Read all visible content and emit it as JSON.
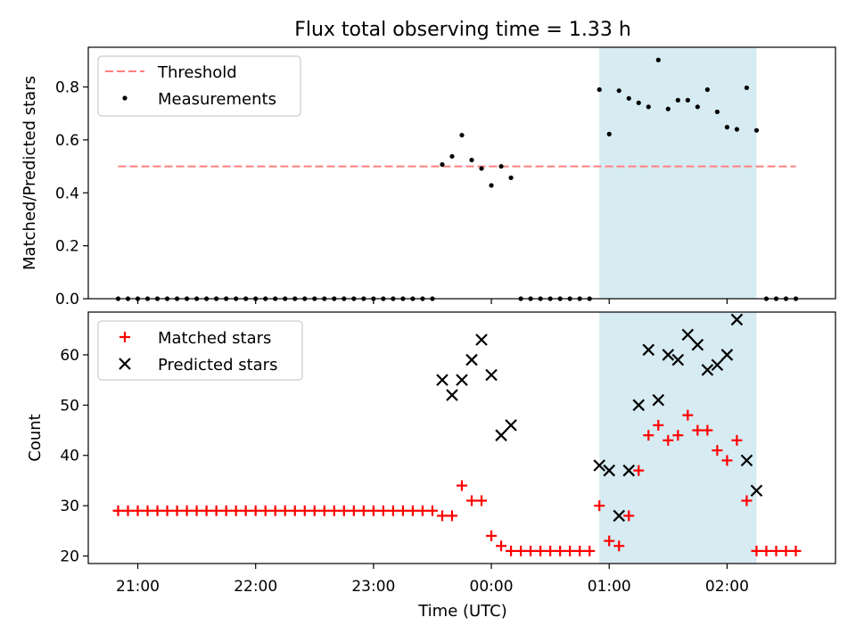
{
  "title": "Flux total observing time = 1.33 h",
  "colors": {
    "threshold": "#ff7f7f",
    "measurement": "#000000",
    "matched": "#ff0000",
    "predicted": "#000000",
    "observing_window": "#add8e6"
  },
  "chart_data": [
    {
      "type": "scatter",
      "panel": "top",
      "ylabel": "Matched/Predicted stars",
      "xlabel": "",
      "ylim": [
        0,
        0.95
      ],
      "yticks": [
        0.0,
        0.2,
        0.4,
        0.6,
        0.8
      ],
      "ytick_labels": [
        "0.0",
        "0.2",
        "0.4",
        "0.6",
        "0.8"
      ],
      "xlim_hours": [
        20.58,
        26.92
      ],
      "xtick_labels": [],
      "grid": false,
      "legend_position": "upper-left",
      "observing_window": [
        "00:55",
        "02:15"
      ],
      "legend": [
        {
          "label": "Threshold",
          "marker": "dashed-line",
          "color": "#ff7f7f"
        },
        {
          "label": "Measurements",
          "marker": "dot",
          "color": "#000000"
        }
      ],
      "threshold": {
        "name": "Threshold",
        "value": 0.5,
        "x_range": [
          "20:50",
          "02:35"
        ]
      },
      "series": [
        {
          "name": "Measurements",
          "marker": "dot",
          "x": [
            "20:50",
            "20:55",
            "21:00",
            "21:05",
            "21:10",
            "21:15",
            "21:20",
            "21:25",
            "21:30",
            "21:35",
            "21:40",
            "21:45",
            "21:50",
            "21:55",
            "22:00",
            "22:05",
            "22:10",
            "22:15",
            "22:20",
            "22:25",
            "22:30",
            "22:35",
            "22:40",
            "22:45",
            "22:50",
            "22:55",
            "23:00",
            "23:05",
            "23:10",
            "23:15",
            "23:20",
            "23:25",
            "23:30",
            "23:35",
            "23:40",
            "23:45",
            "23:50",
            "23:55",
            "00:00",
            "00:05",
            "00:10",
            "00:15",
            "00:20",
            "00:25",
            "00:30",
            "00:35",
            "00:40",
            "00:45",
            "00:50",
            "00:55",
            "01:00",
            "01:05",
            "01:10",
            "01:15",
            "01:20",
            "01:25",
            "01:30",
            "01:35",
            "01:40",
            "01:45",
            "01:50",
            "01:55",
            "02:00",
            "02:05",
            "02:10",
            "02:15",
            "02:20",
            "02:25",
            "02:30",
            "02:35"
          ],
          "y": [
            0,
            0,
            0,
            0,
            0,
            0,
            0,
            0,
            0,
            0,
            0,
            0,
            0,
            0,
            0,
            0,
            0,
            0,
            0,
            0,
            0,
            0,
            0,
            0,
            0,
            0,
            0,
            0,
            0,
            0,
            0,
            0,
            0,
            0.507,
            0.538,
            0.618,
            0.524,
            0.492,
            0.428,
            0.5,
            0.457,
            0,
            0,
            0,
            0,
            0,
            0,
            0,
            0,
            0.79,
            0.622,
            0.786,
            0.757,
            0.74,
            0.725,
            0.902,
            0.717,
            0.75,
            0.75,
            0.725,
            0.79,
            0.706,
            0.648,
            0.64,
            0.797,
            0.636,
            0,
            0,
            0,
            0
          ]
        }
      ]
    },
    {
      "type": "scatter",
      "panel": "bottom",
      "ylabel": "Count",
      "xlabel": "Time (UTC)",
      "ylim": [
        18.5,
        68.5
      ],
      "yticks": [
        20,
        30,
        40,
        50,
        60
      ],
      "ytick_labels": [
        "20",
        "30",
        "40",
        "50",
        "60"
      ],
      "xlim_hours": [
        20.58,
        26.92
      ],
      "xticks_hours": [
        21,
        22,
        23,
        24,
        25,
        26
      ],
      "xtick_labels": [
        "21:00",
        "22:00",
        "23:00",
        "00:00",
        "01:00",
        "02:00"
      ],
      "grid": false,
      "legend_position": "upper-left",
      "observing_window": [
        "00:55",
        "02:15"
      ],
      "legend": [
        {
          "label": "Matched stars",
          "marker": "plus",
          "color": "#ff0000"
        },
        {
          "label": "Predicted stars",
          "marker": "x",
          "color": "#000000"
        }
      ],
      "series": [
        {
          "name": "Matched stars",
          "marker": "plus",
          "x": [
            "20:50",
            "20:55",
            "21:00",
            "21:05",
            "21:10",
            "21:15",
            "21:20",
            "21:25",
            "21:30",
            "21:35",
            "21:40",
            "21:45",
            "21:50",
            "21:55",
            "22:00",
            "22:05",
            "22:10",
            "22:15",
            "22:20",
            "22:25",
            "22:30",
            "22:35",
            "22:40",
            "22:45",
            "22:50",
            "22:55",
            "23:00",
            "23:05",
            "23:10",
            "23:15",
            "23:20",
            "23:25",
            "23:30",
            "23:35",
            "23:40",
            "23:45",
            "23:50",
            "23:55",
            "00:00",
            "00:05",
            "00:10",
            "00:15",
            "00:20",
            "00:25",
            "00:30",
            "00:35",
            "00:40",
            "00:45",
            "00:50",
            "00:55",
            "01:00",
            "01:05",
            "01:10",
            "01:15",
            "01:20",
            "01:25",
            "01:30",
            "01:35",
            "01:40",
            "01:45",
            "01:50",
            "01:55",
            "02:00",
            "02:05",
            "02:10",
            "02:15",
            "02:20",
            "02:25",
            "02:30",
            "02:35"
          ],
          "y": [
            29,
            29,
            29,
            29,
            29,
            29,
            29,
            29,
            29,
            29,
            29,
            29,
            29,
            29,
            29,
            29,
            29,
            29,
            29,
            29,
            29,
            29,
            29,
            29,
            29,
            29,
            29,
            29,
            29,
            29,
            29,
            29,
            29,
            28,
            28,
            34,
            31,
            31,
            24,
            22,
            21,
            21,
            21,
            21,
            21,
            21,
            21,
            21,
            21,
            30,
            23,
            22,
            28,
            37,
            44,
            46,
            43,
            44,
            48,
            45,
            45,
            41,
            39,
            43,
            31,
            21,
            21,
            21,
            21,
            21
          ]
        },
        {
          "name": "Predicted stars",
          "marker": "x",
          "x": [
            "23:35",
            "23:40",
            "23:45",
            "23:50",
            "23:55",
            "00:00",
            "00:05",
            "00:10",
            "00:55",
            "01:00",
            "01:05",
            "01:10",
            "01:15",
            "01:20",
            "01:25",
            "01:30",
            "01:35",
            "01:40",
            "01:45",
            "01:50",
            "01:55",
            "02:00",
            "02:05",
            "02:10",
            "02:15"
          ],
          "y": [
            55,
            52,
            55,
            59,
            63,
            56,
            44,
            46,
            38,
            37,
            28,
            37,
            50,
            61,
            51,
            60,
            59,
            64,
            62,
            57,
            58,
            60,
            67,
            39,
            33
          ]
        }
      ]
    }
  ]
}
